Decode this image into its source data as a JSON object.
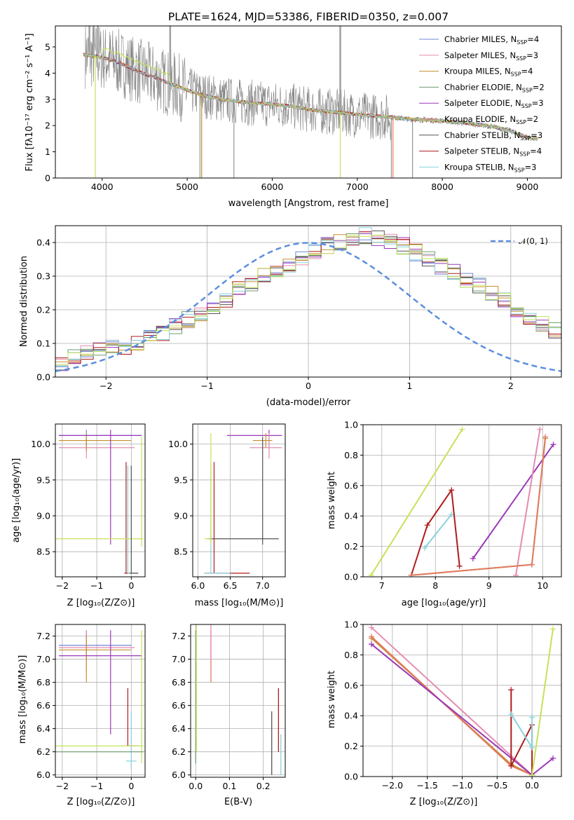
{
  "colors": {
    "grey": "#808080",
    "dashed": "#5b8fdc",
    "series": [
      "#6f87d8",
      "#e58bb1",
      "#c2912e",
      "#6f9c6f",
      "#9b38b8",
      "#e37a63",
      "#555555",
      "#b01c1c",
      "#88d2dc"
    ],
    "accent_lime": "#c4e35a"
  },
  "chart_data": [
    {
      "id": "spectrum",
      "type": "line",
      "title": "PLATE=1624, MJD=53386, FIBERID=0350, z=0.007",
      "xlabel": "wavelength [Angstrom, rest frame]",
      "ylabel": "Flux [fλ10⁻¹⁷ erg cm⁻² s⁻¹ A⁻¹]",
      "xlim": [
        3450,
        9400
      ],
      "ylim": [
        0,
        5.8
      ],
      "xticks": [
        "4000",
        "5000",
        "6000",
        "7000",
        "8000",
        "9000"
      ],
      "yticks": [
        "0",
        "1",
        "2",
        "3",
        "4",
        "5"
      ],
      "legend": {
        "placement": "top-right",
        "entries": [
          {
            "label": "Chabrier MILES, N",
            "sub": "SSP",
            "suffix": "=4"
          },
          {
            "label": "Salpeter MILES, N",
            "sub": "SSP",
            "suffix": "=3"
          },
          {
            "label": "Kroupa MILES, N",
            "sub": "SSP",
            "suffix": "=4"
          },
          {
            "label": "Chabrier ELODIE, N",
            "sub": "SSP",
            "suffix": "=2"
          },
          {
            "label": "Salpeter ELODIE, N",
            "sub": "SSP",
            "suffix": "=3"
          },
          {
            "label": "Kroupa ELODIE, N",
            "sub": "SSP",
            "suffix": "=2"
          },
          {
            "label": "Chabrier STELIB, N",
            "sub": "SSP",
            "suffix": "=3"
          },
          {
            "label": "Salpeter STELIB, N",
            "sub": "SSP",
            "suffix": "=4"
          },
          {
            "label": "Kroupa STELIB, N",
            "sub": "SSP",
            "suffix": "=3"
          }
        ]
      },
      "data_trend": {
        "wavelength": [
          3800,
          4000,
          4200,
          4400,
          4600,
          4800,
          5000,
          5200,
          5400,
          5600,
          5800,
          6000,
          6200,
          6400,
          6600,
          6800,
          7000,
          7200,
          7400,
          7600,
          7800,
          8000,
          8200,
          8400,
          8600,
          8800,
          9000,
          9100
        ],
        "flux": [
          4.7,
          4.6,
          4.4,
          4.1,
          3.85,
          3.6,
          3.35,
          3.15,
          3.0,
          2.92,
          2.85,
          2.82,
          2.75,
          2.62,
          2.55,
          2.5,
          2.42,
          2.37,
          2.32,
          2.25,
          2.22,
          2.18,
          2.12,
          2.05,
          1.95,
          1.8,
          1.55,
          1.5
        ]
      }
    },
    {
      "id": "residuals",
      "type": "histogram",
      "xlabel": "(data-model)/error",
      "ylabel": "Normed distribution",
      "xlim": [
        -2.5,
        2.5
      ],
      "ylim": [
        0,
        0.45
      ],
      "xticks": [
        "−2",
        "−1",
        "0",
        "1",
        "2"
      ],
      "yticks": [
        "0.0",
        "0.1",
        "0.2",
        "0.3",
        "0.4"
      ],
      "legend_label": "𝒩(0, 1)",
      "bin_width": 0.125,
      "bin_start": -2.5,
      "values": [
        0.04,
        0.06,
        0.07,
        0.08,
        0.09,
        0.09,
        0.1,
        0.12,
        0.13,
        0.15,
        0.17,
        0.19,
        0.21,
        0.23,
        0.26,
        0.27,
        0.3,
        0.31,
        0.33,
        0.35,
        0.37,
        0.39,
        0.4,
        0.41,
        0.42,
        0.41,
        0.4,
        0.39,
        0.37,
        0.35,
        0.33,
        0.31,
        0.29,
        0.27,
        0.25,
        0.23,
        0.2,
        0.18,
        0.16,
        0.14
      ]
    }
  ],
  "small_panels": {
    "p1": {
      "xlabel": "Z [log₁₀(Z/Z⊙)]",
      "ylabel": "age  [log₁₀(age/yr)]",
      "xticks": [
        "−2",
        "−1",
        "0"
      ],
      "yticks": [
        "8.5",
        "9.0",
        "9.5",
        "10.0"
      ]
    },
    "p2": {
      "xlabel": "mass [log₁₀(M/M⊙)]",
      "ylabel": "",
      "xticks": [
        "6.0",
        "6.5",
        "7.0"
      ],
      "yticks": [
        "8.5",
        "9.0",
        "9.5",
        "10.0"
      ]
    },
    "p3": {
      "xlabel": "age  [log₁₀(age/yr)]",
      "ylabel": "mass weight",
      "xticks": [
        "7",
        "8",
        "9",
        "10"
      ],
      "yticks": [
        "0.0",
        "0.2",
        "0.4",
        "0.6",
        "0.8",
        "1.0"
      ]
    },
    "p4": {
      "xlabel": "Z [log₁₀(Z/Z⊙)]",
      "ylabel": "mass [log₁₀(M/M⊙)]",
      "xticks": [
        "−2",
        "−1",
        "0"
      ],
      "yticks": [
        "6.0",
        "6.2",
        "6.4",
        "6.6",
        "6.8",
        "7.0",
        "7.2"
      ]
    },
    "p5": {
      "xlabel": "E(B-V)",
      "ylabel": "",
      "xticks": [
        "0.0",
        "0.1",
        "0.2"
      ],
      "yticks": [
        "6.0",
        "6.2",
        "6.4",
        "6.6",
        "6.8",
        "7.0",
        "7.2"
      ]
    },
    "p6": {
      "xlabel": "Z [log₁₀(Z/Z⊙)]",
      "ylabel": "mass weight",
      "xticks": [
        "−2.0",
        "−1.5",
        "−1.0",
        "−0.5",
        "0.0"
      ],
      "yticks": [
        "0.0",
        "0.2",
        "0.4",
        "0.6",
        "0.8",
        "1.0"
      ]
    }
  },
  "weights_vs_age": [
    {
      "color_index": 8,
      "age": [
        7.8,
        8.3
      ],
      "w": [
        0.19,
        0.41
      ]
    },
    {
      "color_index": 7,
      "age": [
        7.55,
        7.85,
        8.3,
        8.45
      ],
      "w": [
        0.01,
        0.34,
        0.57,
        0.07
      ]
    },
    {
      "color_index": 4,
      "age": [
        8.7,
        10.2
      ],
      "w": [
        0.12,
        0.87
      ]
    },
    {
      "color_index": 1,
      "age": [
        9.5,
        9.95
      ],
      "w": [
        0.01,
        0.97
      ]
    },
    {
      "color_index": 2,
      "age": [
        7.55,
        9.8,
        10.05
      ],
      "w": [
        0.01,
        0.08,
        0.91
      ]
    },
    {
      "color_index": 5,
      "age": [
        7.55,
        9.8,
        10.05
      ],
      "w": [
        0.01,
        0.08,
        0.92
      ]
    },
    {
      "color_index": 9,
      "age": [
        6.8,
        8.5
      ],
      "w": [
        0.01,
        0.97
      ]
    }
  ],
  "weights_vs_Z": [
    {
      "color_index": 1,
      "Z": [
        -2.3,
        0.0
      ],
      "w": [
        0.98,
        0.01
      ]
    },
    {
      "color_index": 2,
      "Z": [
        -2.3,
        -0.3,
        0.0
      ],
      "w": [
        0.91,
        0.08,
        0.01
      ]
    },
    {
      "color_index": 5,
      "Z": [
        -2.3,
        -0.3,
        0.0
      ],
      "w": [
        0.92,
        0.07,
        0.01
      ]
    },
    {
      "color_index": 4,
      "Z": [
        -2.3,
        0.0,
        0.3
      ],
      "w": [
        0.87,
        0.01,
        0.12
      ]
    },
    {
      "color_index": 7,
      "Z": [
        -0.3,
        -0.3,
        0.0,
        0.0
      ],
      "w": [
        0.57,
        0.07,
        0.34,
        0.01
      ]
    },
    {
      "color_index": 8,
      "Z": [
        -0.3,
        0.0,
        0.0
      ],
      "w": [
        0.41,
        0.19,
        0.39
      ]
    },
    {
      "color_index": 9,
      "Z": [
        0.0,
        0.3
      ],
      "w": [
        0.01,
        0.97
      ]
    }
  ]
}
